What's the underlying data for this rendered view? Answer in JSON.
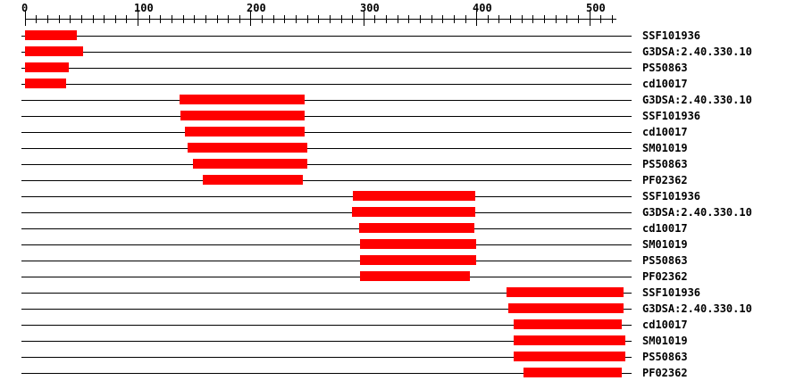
{
  "chart_data": {
    "type": "bar",
    "subtype": "protein-domain-annotation-track",
    "title": "",
    "xlabel": "",
    "ylabel": "",
    "legend": "none",
    "grid": false,
    "bar_color": "#ff0000",
    "line_color": "#000000",
    "background_color": "#ffffff",
    "axis": {
      "orientation": "horizontal",
      "position": "top",
      "min": 0,
      "max": 520,
      "minor_tick_step": 10,
      "major_tick_step": 100,
      "tick_labels": [
        "0",
        "100",
        "200",
        "300",
        "400",
        "500"
      ],
      "sequence_line_end": 537
    },
    "rows": [
      {
        "label": "SSF101936",
        "start": 1,
        "end": 46
      },
      {
        "label": "G3DSA:2.40.330.10",
        "start": 1,
        "end": 52
      },
      {
        "label": "PS50863",
        "start": 1,
        "end": 39
      },
      {
        "label": "cd10017",
        "start": 1,
        "end": 37
      },
      {
        "label": "G3DSA:2.40.330.10",
        "start": 138,
        "end": 248
      },
      {
        "label": "SSF101936",
        "start": 139,
        "end": 248
      },
      {
        "label": "cd10017",
        "start": 143,
        "end": 248
      },
      {
        "label": "SM01019",
        "start": 145,
        "end": 250
      },
      {
        "label": "PS50863",
        "start": 150,
        "end": 250
      },
      {
        "label": "PF02362",
        "start": 159,
        "end": 246
      },
      {
        "label": "SSF101936",
        "start": 292,
        "end": 399
      },
      {
        "label": "G3DSA:2.40.330.10",
        "start": 291,
        "end": 399
      },
      {
        "label": "cd10017",
        "start": 297,
        "end": 398
      },
      {
        "label": "SM01019",
        "start": 298,
        "end": 400
      },
      {
        "label": "PS50863",
        "start": 298,
        "end": 400
      },
      {
        "label": "PF02362",
        "start": 298,
        "end": 394
      },
      {
        "label": "SSF101936",
        "start": 428,
        "end": 530
      },
      {
        "label": "G3DSA:2.40.330.10",
        "start": 429,
        "end": 530
      },
      {
        "label": "cd10017",
        "start": 434,
        "end": 529
      },
      {
        "label": "SM01019",
        "start": 434,
        "end": 532
      },
      {
        "label": "PS50863",
        "start": 434,
        "end": 532
      },
      {
        "label": "PF02362",
        "start": 443,
        "end": 529
      }
    ]
  }
}
